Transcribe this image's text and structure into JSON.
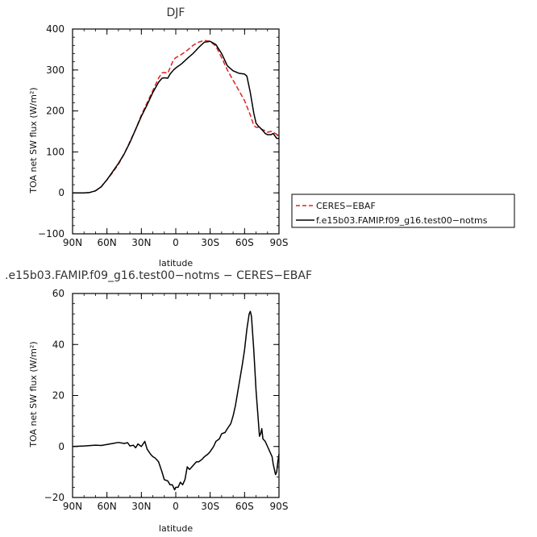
{
  "chart_data": [
    {
      "type": "line",
      "title": "DJF",
      "xlabel": "latitude",
      "ylabel": "TOA net SW flux (W/m²)",
      "xlim": [
        -90,
        90
      ],
      "ylim": [
        -100,
        400
      ],
      "x_ticks": [
        "90N",
        "60N",
        "30N",
        "0",
        "30S",
        "60S",
        "90S"
      ],
      "y_ticks": [
        "400",
        "300",
        "200",
        "100",
        "0",
        "−100"
      ],
      "legend_position": "right",
      "series": [
        {
          "name": "CERES−EBAF",
          "color": "#dd2222",
          "style": "dashed",
          "x": [
            -90,
            -85,
            -80,
            -75,
            -70,
            -65,
            -60,
            -55,
            -50,
            -45,
            -40,
            -35,
            -30,
            -25,
            -20,
            -15,
            -12,
            -10,
            -7,
            -5,
            -2,
            0,
            5,
            10,
            15,
            20,
            25,
            30,
            35,
            40,
            45,
            50,
            55,
            60,
            65,
            68,
            70,
            72,
            75,
            78,
            80,
            83,
            85,
            88,
            90
          ],
          "y": [
            0,
            0,
            0,
            1,
            5,
            15,
            32,
            50,
            70,
            95,
            125,
            155,
            190,
            220,
            250,
            280,
            293,
            294,
            292,
            305,
            325,
            330,
            338,
            348,
            360,
            368,
            372,
            370,
            358,
            330,
            300,
            275,
            250,
            225,
            190,
            165,
            160,
            160,
            155,
            152,
            148,
            150,
            148,
            143,
            140
          ]
        },
        {
          "name": "f.e15b03.FAMIP.f09_g16.test00−notms",
          "color": "#000000",
          "style": "solid",
          "x": [
            -90,
            -85,
            -80,
            -75,
            -70,
            -65,
            -60,
            -55,
            -50,
            -45,
            -40,
            -35,
            -30,
            -25,
            -20,
            -15,
            -12,
            -10,
            -7,
            -5,
            -2,
            0,
            5,
            10,
            15,
            20,
            25,
            30,
            35,
            40,
            45,
            50,
            55,
            60,
            62,
            65,
            68,
            70,
            72,
            75,
            78,
            80,
            83,
            85,
            88,
            90
          ],
          "y": [
            0,
            0,
            0,
            1,
            5,
            15,
            32,
            52,
            72,
            95,
            123,
            155,
            187,
            215,
            245,
            270,
            280,
            281,
            280,
            290,
            300,
            305,
            315,
            328,
            340,
            355,
            368,
            370,
            362,
            340,
            310,
            298,
            292,
            290,
            285,
            245,
            195,
            170,
            163,
            155,
            145,
            142,
            142,
            145,
            133,
            133
          ]
        }
      ]
    },
    {
      "type": "line",
      "title": ".e15b03.FAMIP.f09_g16.test00−notms − CERES−EBAF",
      "xlabel": "latitude",
      "ylabel": "TOA net SW flux (W/m²)",
      "xlim": [
        -90,
        90
      ],
      "ylim": [
        -20,
        60
      ],
      "x_ticks": [
        "90N",
        "60N",
        "30N",
        "0",
        "30S",
        "60S",
        "90S"
      ],
      "y_ticks": [
        "60",
        "40",
        "20",
        "0",
        "−20"
      ],
      "series": [
        {
          "color": "#000000",
          "style": "solid",
          "x": [
            -90,
            -80,
            -70,
            -65,
            -60,
            -55,
            -50,
            -45,
            -42,
            -40,
            -37,
            -35,
            -33,
            -30,
            -27,
            -25,
            -22,
            -20,
            -18,
            -15,
            -12,
            -10,
            -7,
            -5,
            -3,
            -1,
            0,
            2,
            4,
            6,
            8,
            10,
            12,
            15,
            18,
            20,
            23,
            25,
            28,
            30,
            33,
            35,
            38,
            40,
            43,
            45,
            48,
            50,
            52,
            55,
            58,
            60,
            62,
            64,
            65,
            66,
            68,
            70,
            72,
            73,
            74,
            75,
            76,
            78,
            80,
            82,
            84,
            85,
            86,
            87,
            88,
            89,
            90
          ],
          "y": [
            0,
            0.2,
            0.5,
            0.4,
            0.8,
            1.2,
            1.6,
            1.2,
            1.5,
            0.2,
            0.5,
            -0.5,
            1.0,
            0,
            2,
            -1,
            -3,
            -4,
            -4.5,
            -6,
            -10,
            -13,
            -13.5,
            -15,
            -15,
            -17,
            -16,
            -16,
            -14,
            -15,
            -13,
            -8,
            -9,
            -7.5,
            -6,
            -6,
            -5,
            -4,
            -3,
            -2,
            0,
            2,
            3,
            5,
            5.5,
            7,
            9,
            12,
            16,
            24,
            32,
            38,
            46,
            52,
            53,
            51,
            38,
            22,
            10,
            4,
            5,
            7,
            3,
            2,
            0,
            -2,
            -4,
            -7,
            -9,
            -11,
            -10,
            -6,
            -3
          ]
        }
      ]
    }
  ]
}
